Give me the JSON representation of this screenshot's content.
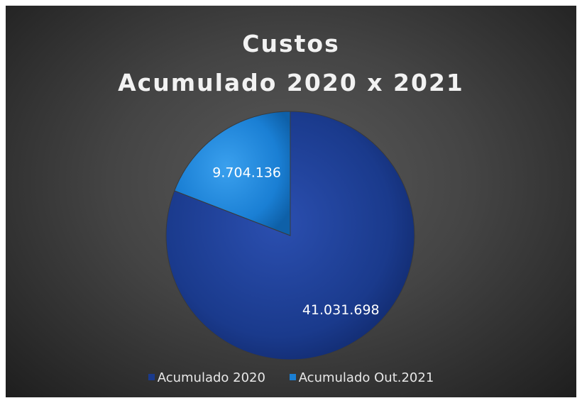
{
  "chart_data": {
    "type": "pie",
    "title_lines": [
      "Custos",
      "Acumulado 2020 x 2021"
    ],
    "slices": [
      {
        "label": "Acumulado 2020",
        "value": 41031698,
        "display": "41.031.698",
        "color": "#1a3a8c"
      },
      {
        "label": "Acumulado Out.2021",
        "value": 9704136,
        "display": "9.704.136",
        "color": "#1a7fd4"
      }
    ],
    "legend_position": "bottom"
  }
}
